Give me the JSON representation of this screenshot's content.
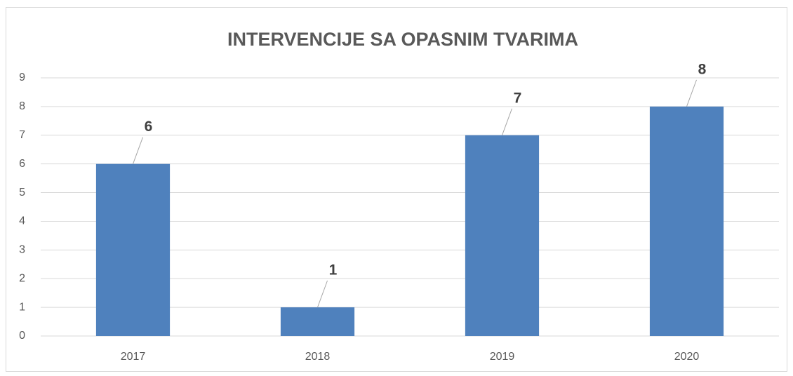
{
  "chart_data": {
    "type": "bar",
    "title": "INTERVENCIJE SA OPASNIM TVARIMA",
    "categories": [
      "2017",
      "2018",
      "2019",
      "2020"
    ],
    "values": [
      6,
      1,
      7,
      8
    ],
    "color": "#4f81bd",
    "ylim": [
      0,
      9
    ],
    "yticks": [
      0,
      1,
      2,
      3,
      4,
      5,
      6,
      7,
      8,
      9
    ],
    "grid": true
  }
}
